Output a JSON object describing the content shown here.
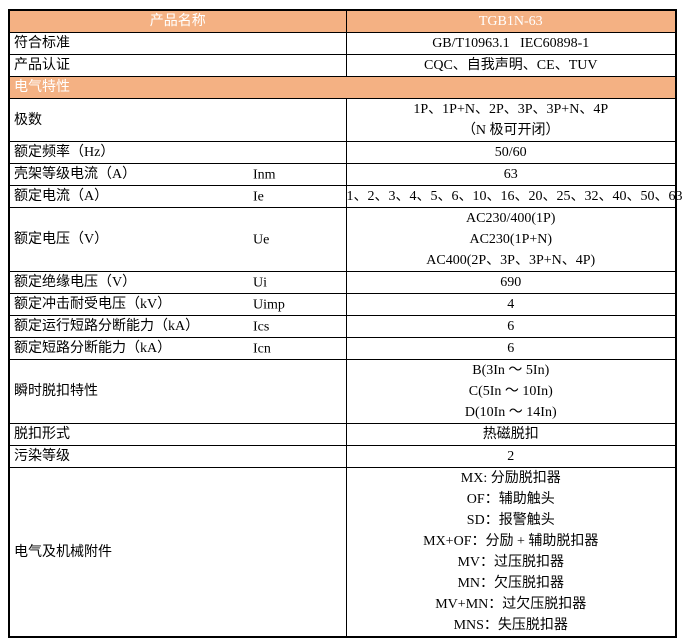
{
  "colors": {
    "accent": "#F4B183",
    "border": "#000000",
    "text": "#000000",
    "header_text": "#FFFFFF"
  },
  "table": {
    "rows": [
      {
        "type": "header",
        "label": "产品名称",
        "values": [
          "TGB1N-63"
        ]
      },
      {
        "type": "data",
        "label": "符合标准",
        "values": [
          "GB/T10963.1   IEC60898-1"
        ]
      },
      {
        "type": "data",
        "label": "产品认证",
        "values": [
          "CQC、自我声明、CE、TUV"
        ]
      },
      {
        "type": "section",
        "label": "电气特性"
      },
      {
        "type": "data",
        "label": "极数",
        "values": [
          "1P、1P+N、2P、3P、3P+N、4P",
          "（N 极可开闭）"
        ]
      },
      {
        "type": "data",
        "label": "额定频率（Hz）",
        "values": [
          "50/60"
        ]
      },
      {
        "type": "data",
        "label": "壳架等级电流（A）",
        "symbol": "Inm",
        "values": [
          "63"
        ]
      },
      {
        "type": "data",
        "label": "额定电流（A）",
        "symbol": "Ie",
        "values": [
          "1、2、3、4、5、6、10、16、20、25、32、40、50、63"
        ]
      },
      {
        "type": "data",
        "label": "额定电压（V）",
        "symbol": "Ue",
        "values": [
          "AC230/400(1P)",
          "AC230(1P+N)",
          "AC400(2P、3P、3P+N、4P)"
        ]
      },
      {
        "type": "data",
        "label": "额定绝缘电压（V）",
        "symbol": "Ui",
        "values": [
          "690"
        ]
      },
      {
        "type": "data",
        "label": "额定冲击耐受电压（kV）",
        "symbol": "Uimp",
        "values": [
          "4"
        ]
      },
      {
        "type": "data",
        "label": "额定运行短路分断能力（kA）",
        "symbol": "Ics",
        "values": [
          "6"
        ]
      },
      {
        "type": "data",
        "label": "额定短路分断能力（kA）",
        "symbol": "Icn",
        "values": [
          "6"
        ]
      },
      {
        "type": "data",
        "label": "瞬时脱扣特性",
        "values": [
          "B(3In ～ 5In)",
          "C(5In ～ 10In)",
          "D(10In ～ 14In)"
        ]
      },
      {
        "type": "data",
        "label": "脱扣形式",
        "values": [
          "热磁脱扣"
        ]
      },
      {
        "type": "data",
        "label": "污染等级",
        "values": [
          "2"
        ]
      },
      {
        "type": "data",
        "label": "电气及机械附件",
        "values": [
          "MX: 分励脱扣器",
          "OF：辅助触头",
          "SD：报警触头",
          "MX+OF：分励 + 辅助脱扣器",
          "MV：过压脱扣器",
          "MN：欠压脱扣器",
          "MV+MN：过欠压脱扣器",
          "MNS：失压脱扣器"
        ]
      }
    ]
  }
}
